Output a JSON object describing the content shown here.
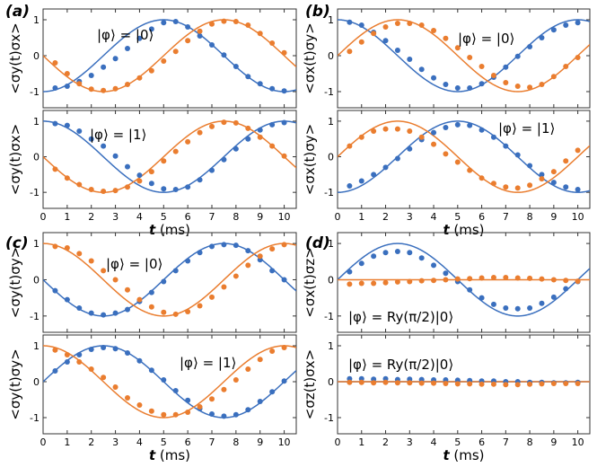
{
  "colors": {
    "blue": "#3a6fbe",
    "orange": "#ea7d2f",
    "axis": "#333333"
  },
  "panel_labels": [
    "(a)",
    "(b)",
    "(c)",
    "(d)"
  ],
  "x_axis": {
    "label": "t (ms)",
    "ticks": [
      0,
      1,
      2,
      3,
      4,
      5,
      6,
      7,
      8,
      9,
      10
    ],
    "range": [
      0,
      10.5
    ]
  },
  "y_axis": {
    "ticks": [
      -1,
      0,
      1
    ],
    "range": [
      -1.45,
      1.3
    ]
  },
  "chart_data": [
    {
      "type": "scatter",
      "panel": "(a)",
      "position": "top",
      "ylabel": "<σy(t)σx>",
      "annotation": "|φ⟩ = |0⟩",
      "xlim": [
        0,
        10.5
      ],
      "ylim": [
        -1.45,
        1.3
      ],
      "x": [
        0.5,
        1,
        1.5,
        2,
        2.5,
        3,
        3.5,
        4,
        4.5,
        5,
        5.5,
        6,
        6.5,
        7,
        7.5,
        8,
        8.5,
        9,
        9.5,
        10
      ],
      "series": [
        {
          "color": "blue",
          "fit": "-cos(2πt/10)",
          "points": [
            -0.9,
            -0.85,
            -0.72,
            -0.55,
            -0.32,
            -0.08,
            0.2,
            0.48,
            0.74,
            0.92,
            0.95,
            0.8,
            0.55,
            0.3,
            0.02,
            -0.3,
            -0.58,
            -0.78,
            -0.92,
            -0.98
          ]
        },
        {
          "color": "orange",
          "fit": "-sin(2πt/10)",
          "points": [
            -0.2,
            -0.5,
            -0.78,
            -0.93,
            -0.97,
            -0.92,
            -0.8,
            -0.62,
            -0.42,
            -0.15,
            0.12,
            0.42,
            0.68,
            0.88,
            0.96,
            0.95,
            0.85,
            0.62,
            0.35,
            0.08
          ]
        }
      ]
    },
    {
      "type": "scatter",
      "panel": "(a)",
      "position": "bottom",
      "ylabel": "<σy(t)σx>",
      "annotation": "|φ⟩ = |1⟩",
      "xlim": [
        0,
        10.5
      ],
      "ylim": [
        -1.45,
        1.3
      ],
      "x": [
        0.5,
        1,
        1.5,
        2,
        2.5,
        3,
        3.5,
        4,
        4.5,
        5,
        5.5,
        6,
        6.5,
        7,
        7.5,
        8,
        8.5,
        9,
        9.5,
        10
      ],
      "series": [
        {
          "color": "blue",
          "fit": "cos(2πt/10)",
          "points": [
            0.93,
            0.88,
            0.72,
            0.5,
            0.3,
            0.02,
            -0.28,
            -0.52,
            -0.75,
            -0.9,
            -0.92,
            -0.85,
            -0.65,
            -0.38,
            -0.08,
            0.22,
            0.5,
            0.75,
            0.9,
            0.96
          ]
        },
        {
          "color": "orange",
          "fit": "-sin(2πt/10)",
          "points": [
            -0.35,
            -0.6,
            -0.78,
            -0.92,
            -0.97,
            -0.95,
            -0.85,
            -0.68,
            -0.42,
            -0.12,
            0.15,
            0.42,
            0.68,
            0.85,
            0.97,
            0.95,
            0.8,
            0.55,
            0.3,
            0.02
          ]
        }
      ]
    },
    {
      "type": "scatter",
      "panel": "(b)",
      "position": "top",
      "ylabel": "<σx(t)σy>",
      "annotation": "|φ⟩ = |0⟩",
      "xlim": [
        0,
        10.5
      ],
      "ylim": [
        -1.45,
        1.3
      ],
      "x": [
        0.5,
        1,
        1.5,
        2,
        2.5,
        3,
        3.5,
        4,
        4.5,
        5,
        5.5,
        6,
        6.5,
        7,
        7.5,
        8,
        8.5,
        9,
        9.5,
        10
      ],
      "series": [
        {
          "color": "blue",
          "fit": "cos(2πt/10)",
          "points": [
            0.93,
            0.85,
            0.65,
            0.42,
            0.15,
            -0.1,
            -0.38,
            -0.62,
            -0.8,
            -0.9,
            -0.9,
            -0.78,
            -0.6,
            -0.32,
            -0.02,
            0.25,
            0.5,
            0.72,
            0.85,
            0.92
          ]
        },
        {
          "color": "orange",
          "fit": "sin(2πt/10)",
          "points": [
            0.12,
            0.38,
            0.62,
            0.8,
            0.9,
            0.9,
            0.85,
            0.7,
            0.48,
            0.22,
            -0.05,
            -0.3,
            -0.55,
            -0.75,
            -0.85,
            -0.88,
            -0.8,
            -0.58,
            -0.3,
            -0.05
          ]
        }
      ]
    },
    {
      "type": "scatter",
      "panel": "(b)",
      "position": "bottom",
      "ylabel": "<σx(t)σy>",
      "annotation": "|φ⟩ = |1⟩",
      "xlim": [
        0,
        10.5
      ],
      "ylim": [
        -1.45,
        1.3
      ],
      "x": [
        0.5,
        1,
        1.5,
        2,
        2.5,
        3,
        3.5,
        4,
        4.5,
        5,
        5.5,
        6,
        6.5,
        7,
        7.5,
        8,
        8.5,
        9,
        9.5,
        10
      ],
      "series": [
        {
          "color": "blue",
          "fit": "-cos(2πt/10)",
          "points": [
            -0.82,
            -0.68,
            -0.5,
            -0.3,
            -0.05,
            0.22,
            0.48,
            0.68,
            0.82,
            0.9,
            0.88,
            0.75,
            0.55,
            0.3,
            0.05,
            -0.25,
            -0.5,
            -0.72,
            -0.85,
            -0.92
          ]
        },
        {
          "color": "orange",
          "fit": "sin(2πt/10)",
          "points": [
            0.3,
            0.55,
            0.72,
            0.78,
            0.78,
            0.72,
            0.55,
            0.35,
            0.08,
            -0.15,
            -0.38,
            -0.6,
            -0.75,
            -0.85,
            -0.88,
            -0.8,
            -0.62,
            -0.42,
            -0.12,
            0.18
          ]
        }
      ]
    },
    {
      "type": "scatter",
      "panel": "(c)",
      "position": "top",
      "ylabel": "<σy(t)σy>",
      "annotation": "|φ⟩ = |0⟩",
      "xlim": [
        0,
        10.5
      ],
      "ylim": [
        -1.45,
        1.3
      ],
      "x": [
        0.5,
        1,
        1.5,
        2,
        2.5,
        3,
        3.5,
        4,
        4.5,
        5,
        5.5,
        6,
        6.5,
        7,
        7.5,
        8,
        8.5,
        9,
        9.5,
        10
      ],
      "series": [
        {
          "color": "blue",
          "fit": "-sin(2πt/10)",
          "points": [
            -0.3,
            -0.55,
            -0.78,
            -0.92,
            -0.97,
            -0.92,
            -0.82,
            -0.6,
            -0.35,
            -0.05,
            0.25,
            0.52,
            0.75,
            0.92,
            0.97,
            0.95,
            0.8,
            0.55,
            0.25,
            0.0
          ]
        },
        {
          "color": "orange",
          "fit": "cos(2πt/10)",
          "points": [
            0.92,
            0.88,
            0.72,
            0.52,
            0.25,
            0.0,
            -0.28,
            -0.55,
            -0.75,
            -0.9,
            -0.95,
            -0.88,
            -0.72,
            -0.48,
            -0.2,
            0.1,
            0.4,
            0.65,
            0.85,
            0.97
          ]
        }
      ]
    },
    {
      "type": "scatter",
      "panel": "(c)",
      "position": "bottom",
      "ylabel": "<σy(t)σy>",
      "annotation": "|φ⟩ = |1⟩",
      "xlim": [
        0,
        10.5
      ],
      "ylim": [
        -1.45,
        1.3
      ],
      "x": [
        0.5,
        1,
        1.5,
        2,
        2.5,
        3,
        3.5,
        4,
        4.5,
        5,
        5.5,
        6,
        6.5,
        7,
        7.5,
        8,
        8.5,
        9,
        9.5,
        10
      ],
      "series": [
        {
          "color": "blue",
          "fit": "sin(2πt/10)",
          "points": [
            0.3,
            0.55,
            0.75,
            0.9,
            0.95,
            0.92,
            0.8,
            0.58,
            0.32,
            0.05,
            -0.25,
            -0.52,
            -0.75,
            -0.9,
            -0.96,
            -0.92,
            -0.78,
            -0.55,
            -0.28,
            0.02
          ]
        },
        {
          "color": "orange",
          "fit": "cos(2πt/10)",
          "points": [
            0.88,
            0.75,
            0.55,
            0.35,
            0.12,
            -0.15,
            -0.45,
            -0.65,
            -0.82,
            -0.92,
            -0.92,
            -0.85,
            -0.7,
            -0.48,
            -0.22,
            0.05,
            0.35,
            0.62,
            0.85,
            0.95
          ]
        }
      ]
    },
    {
      "type": "scatter",
      "panel": "(d)",
      "position": "top",
      "ylabel": "<σx(t)σz>",
      "annotation": "|φ⟩ = Ry(π/2)|0⟩",
      "xlim": [
        0,
        10.5
      ],
      "ylim": [
        -1.45,
        1.3
      ],
      "x": [
        0.5,
        1,
        1.5,
        2,
        2.5,
        3,
        3.5,
        4,
        4.5,
        5,
        5.5,
        6,
        6.5,
        7,
        7.5,
        8,
        8.5,
        9,
        9.5,
        10
      ],
      "series": [
        {
          "color": "blue",
          "fit": "sin(2πt/10)",
          "points": [
            0.22,
            0.45,
            0.65,
            0.75,
            0.78,
            0.75,
            0.6,
            0.4,
            0.18,
            -0.05,
            -0.28,
            -0.5,
            -0.68,
            -0.78,
            -0.8,
            -0.78,
            -0.65,
            -0.48,
            -0.25,
            -0.05
          ]
        },
        {
          "color": "orange",
          "fit": "0",
          "points": [
            -0.12,
            -0.1,
            -0.1,
            -0.08,
            -0.06,
            -0.05,
            -0.03,
            -0.02,
            0.0,
            0.02,
            0.03,
            0.05,
            0.06,
            0.06,
            0.05,
            0.04,
            0.02,
            0.0,
            -0.02,
            -0.04
          ]
        }
      ]
    },
    {
      "type": "scatter",
      "panel": "(d)",
      "position": "bottom",
      "ylabel": "<σz(t)σx>",
      "annotation": "|φ⟩ = Ry(π/2)|0⟩",
      "xlim": [
        0,
        10.5
      ],
      "ylim": [
        -1.45,
        1.3
      ],
      "x": [
        0.5,
        1,
        1.5,
        2,
        2.5,
        3,
        3.5,
        4,
        4.5,
        5,
        5.5,
        6,
        6.5,
        7,
        7.5,
        8,
        8.5,
        9,
        9.5,
        10
      ],
      "series": [
        {
          "color": "blue",
          "fit": "0",
          "points": [
            0.08,
            0.08,
            0.07,
            0.08,
            0.06,
            0.07,
            0.06,
            0.05,
            0.05,
            0.04,
            0.03,
            0.02,
            0.02,
            0.0,
            0.0,
            -0.02,
            -0.02,
            -0.03,
            -0.03,
            -0.02
          ]
        },
        {
          "color": "orange",
          "fit": "0",
          "points": [
            -0.02,
            -0.02,
            -0.03,
            -0.02,
            -0.03,
            -0.03,
            -0.04,
            -0.04,
            -0.05,
            -0.06,
            -0.06,
            -0.07,
            -0.07,
            -0.08,
            -0.08,
            -0.07,
            -0.06,
            -0.05,
            -0.05,
            -0.05
          ]
        }
      ]
    }
  ]
}
